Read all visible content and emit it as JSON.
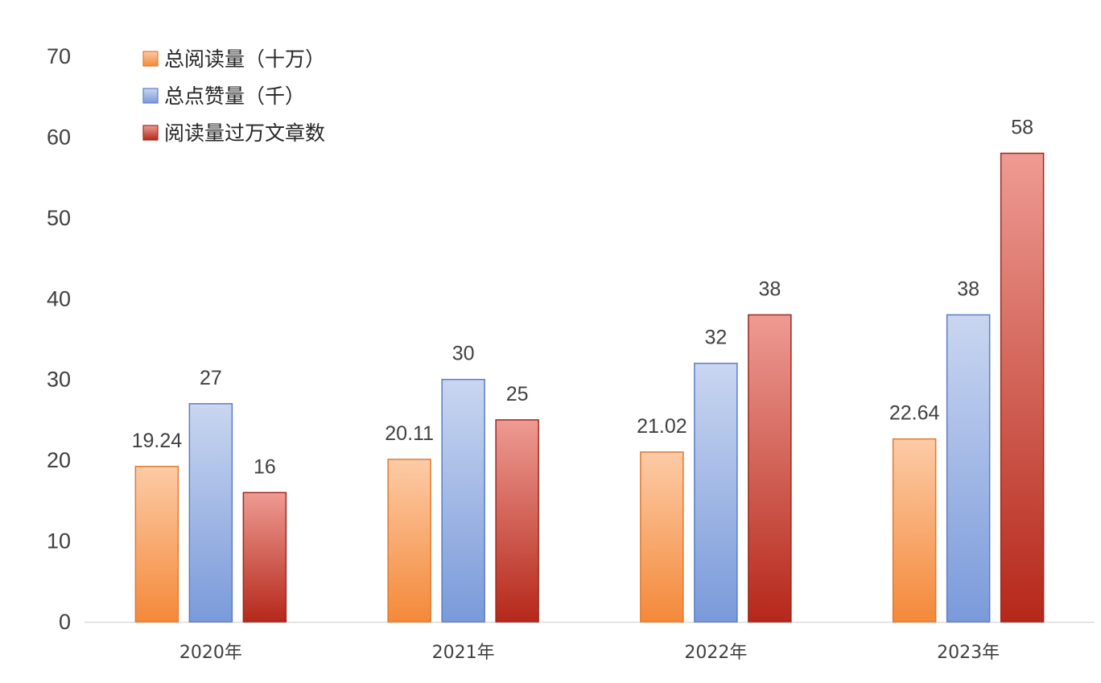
{
  "chart_data": {
    "type": "bar",
    "categories": [
      "2020年",
      "2021年",
      "2022年",
      "2023年"
    ],
    "series": [
      {
        "name": "总阅读量（十万）",
        "values": [
          19.24,
          20.11,
          21.02,
          22.64
        ],
        "labels": [
          "19.24",
          "20.11",
          "21.02",
          "22.64"
        ],
        "color": "#F4893A"
      },
      {
        "name": "总点赞量（千）",
        "values": [
          27,
          30,
          32,
          38
        ],
        "labels": [
          "27",
          "30",
          "32",
          "38"
        ],
        "color": "#7A9ADA"
      },
      {
        "name": "阅读量过万文章数",
        "values": [
          16,
          25,
          38,
          58
        ],
        "labels": [
          "16",
          "25",
          "38",
          "58"
        ],
        "color": "#B5281A"
      }
    ],
    "ylim": [
      0,
      70
    ],
    "yticks": [
      "0",
      "10",
      "20",
      "30",
      "40",
      "50",
      "60",
      "70"
    ],
    "grid": false,
    "legend_position": "top-left",
    "title": "",
    "xlabel": "",
    "ylabel": ""
  }
}
